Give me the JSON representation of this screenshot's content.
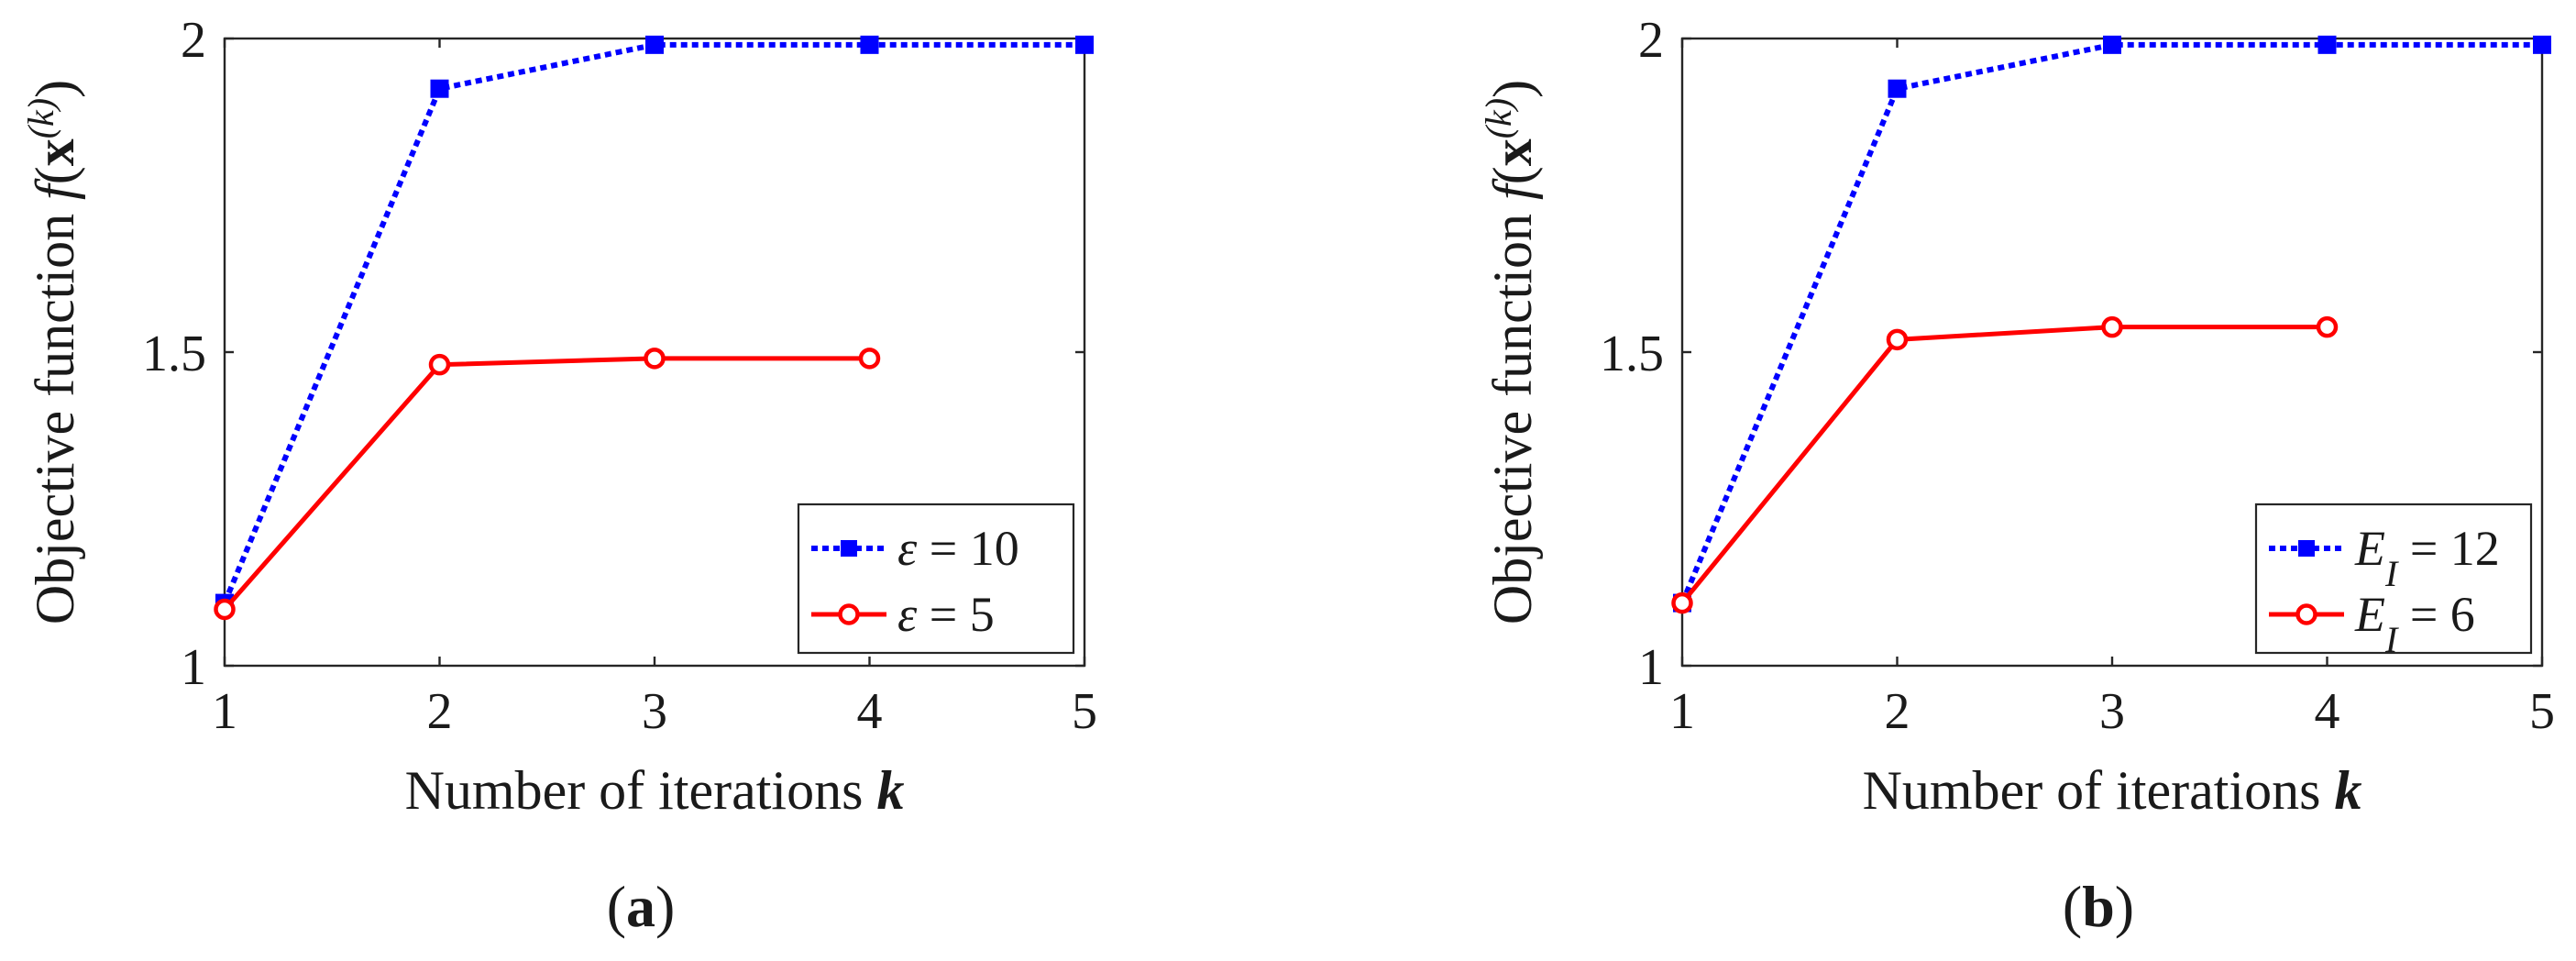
{
  "chart_data": [
    {
      "type": "line",
      "caption": "(a)",
      "xlabel": "Number of iterations k",
      "ylabel": "Objective function f(x(k))",
      "xlim": [
        1,
        5
      ],
      "ylim": [
        1,
        2
      ],
      "xticks": [
        "1",
        "2",
        "3",
        "4",
        "5"
      ],
      "yticks": [
        "1",
        "1.5",
        "2"
      ],
      "grid": false,
      "legend_position": "bottom-right",
      "series": [
        {
          "name": "ε = 10",
          "color": "#0000ff",
          "linestyle": "dotted",
          "marker": "square",
          "x": [
            1,
            2,
            3,
            4,
            5
          ],
          "y": [
            1.1,
            1.92,
            1.99,
            1.99,
            1.99
          ]
        },
        {
          "name": "ε = 5",
          "color": "#ff0000",
          "linestyle": "solid",
          "marker": "circle",
          "x": [
            1,
            2,
            3,
            4
          ],
          "y": [
            1.09,
            1.48,
            1.49,
            1.49
          ]
        }
      ]
    },
    {
      "type": "line",
      "caption": "(b)",
      "xlabel": "Number of iterations k",
      "ylabel": "Objective function f(x(k))",
      "xlim": [
        1,
        5
      ],
      "ylim": [
        1,
        2
      ],
      "xticks": [
        "1",
        "2",
        "3",
        "4",
        "5"
      ],
      "yticks": [
        "1",
        "1.5",
        "2"
      ],
      "grid": false,
      "legend_position": "bottom-right",
      "series": [
        {
          "name": "E_I = 12",
          "color": "#0000ff",
          "linestyle": "dotted",
          "marker": "square",
          "x": [
            1,
            2,
            3,
            4,
            5
          ],
          "y": [
            1.1,
            1.92,
            1.99,
            1.99,
            1.99
          ]
        },
        {
          "name": "E_I = 6",
          "color": "#ff0000",
          "linestyle": "solid",
          "marker": "circle",
          "x": [
            1,
            2,
            3,
            4
          ],
          "y": [
            1.1,
            1.52,
            1.54,
            1.54
          ]
        }
      ]
    }
  ]
}
